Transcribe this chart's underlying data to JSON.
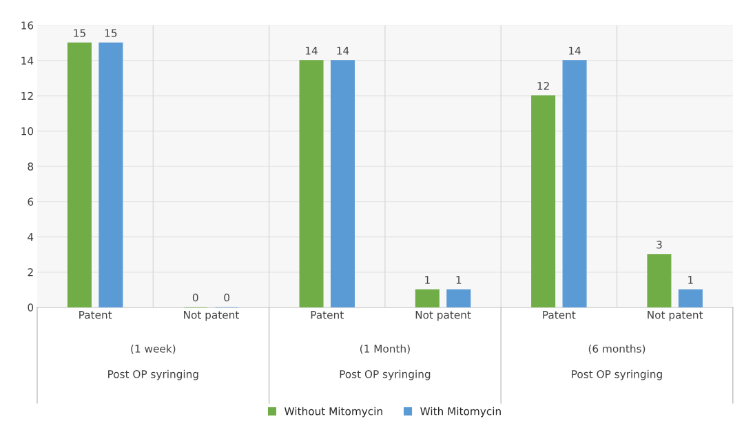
{
  "chart_data": {
    "type": "bar",
    "categories": [
      "Patent",
      "Not patent",
      "Patent",
      "Not patent",
      "Patent",
      "Not patent"
    ],
    "series": [
      {
        "name": "Without Mitomycin",
        "color": "#70ad47",
        "values": [
          15,
          0,
          14,
          1,
          12,
          3
        ]
      },
      {
        "name": "With Mitomycin",
        "color": "#5b9bd5",
        "values": [
          15,
          0,
          14,
          1,
          14,
          1
        ]
      }
    ],
    "annotations": [
      "(1 week)",
      "Post OP syringing",
      "(1 Month)",
      "Post OP syringing",
      "(6 months)",
      "Post OP syringing"
    ],
    "ylim": [
      0,
      16
    ],
    "yticks": [
      0,
      2,
      4,
      6,
      8,
      10,
      12,
      14,
      16
    ],
    "grid": "y",
    "legend": "bottom",
    "data_labels": true
  }
}
